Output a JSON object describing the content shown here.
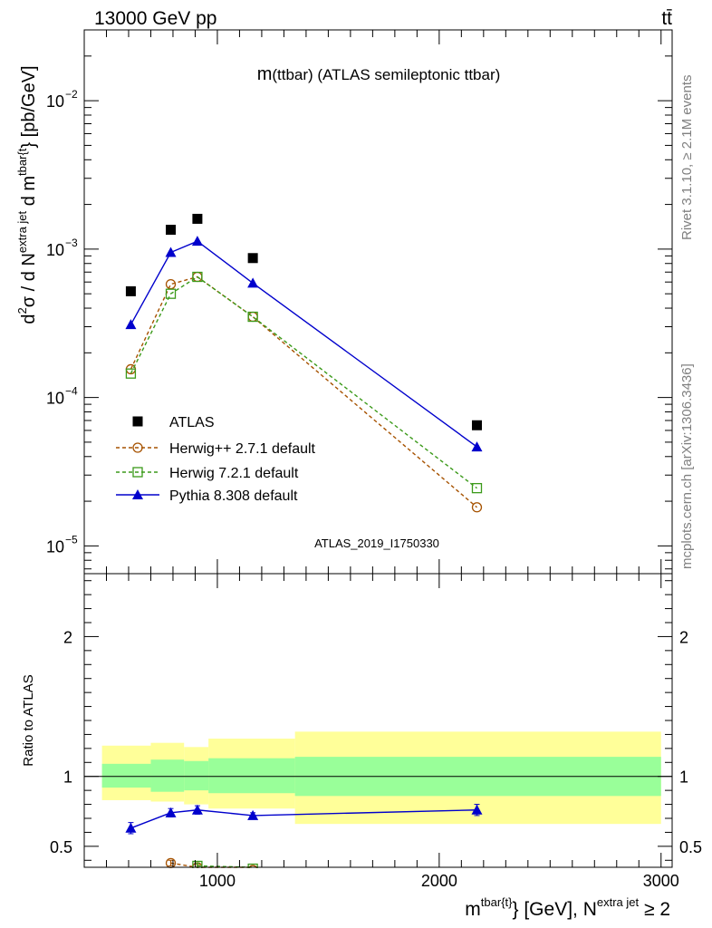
{
  "header": {
    "energy_label": "13000 GeV pp",
    "process_label": "tt̄",
    "rivet_label": "Rivet 3.1.10, ≥ 2.1M events",
    "mcplots_label": "mcplots.cern.ch [arXiv:1306.3436]"
  },
  "colors": {
    "atlas": "#000000",
    "herwigpp": "#a65200",
    "herwig7": "#3b9a1a",
    "pythia": "#0000cc",
    "band_inner": "#99ff99",
    "band_outer": "#ffff99",
    "analysis_id": "#999999"
  },
  "chart_data": [
    {
      "type": "line",
      "title": "m(ttbar) (ATLAS semileptonic ttbar)",
      "title_main": "m",
      "title_rest": "(ttbar) (ATLAS semileptonic ttbar)",
      "ylabel_parts": {
        "a": "d",
        "a_sup": "2",
        "b": "σ / d N",
        "b_sup": "extra jet",
        "c": " d m",
        "c_sup": "tbar{t",
        "d": "} [pb/GeV]"
      },
      "yscale": "log",
      "ylim": [
        6.5e-06,
        0.03
      ],
      "xlim": [
        400,
        3050
      ],
      "y_tick_labels": [
        "10",
        "10",
        "10",
        "10"
      ],
      "y_tick_exponents": [
        "−2",
        "−3",
        "−4",
        "−5"
      ],
      "y_tick_values": [
        0.01,
        0.001,
        0.0001,
        1e-05
      ],
      "analysis_id": "ATLAS_2019_I1750330",
      "legend_position": "bottom-left",
      "series": [
        {
          "name": "ATLAS",
          "marker": "square-filled",
          "x": [
            610,
            790,
            910,
            1160,
            2170
          ],
          "y": [
            0.00052,
            0.00135,
            0.0016,
            0.00087,
            6.5e-05
          ]
        },
        {
          "name": "Herwig++ 2.7.1 default",
          "marker": "circle-open",
          "linestyle": "dashed",
          "x": [
            610,
            790,
            910,
            1160,
            2170
          ],
          "y": [
            0.000155,
            0.00058,
            0.00065,
            0.00035,
            1.82e-05
          ]
        },
        {
          "name": "Herwig 7.2.1 default",
          "marker": "square-open",
          "linestyle": "dashed",
          "x": [
            610,
            790,
            910,
            1160,
            2170
          ],
          "y": [
            0.000145,
            0.0005,
            0.00065,
            0.00035,
            2.45e-05
          ]
        },
        {
          "name": "Pythia 8.308 default",
          "marker": "triangle-filled",
          "linestyle": "solid",
          "x": [
            610,
            790,
            910,
            1160,
            2170
          ],
          "y": [
            0.00031,
            0.00095,
            0.00113,
            0.00059,
            4.65e-05
          ]
        }
      ]
    },
    {
      "type": "line",
      "ylabel": "Ratio to ATLAS",
      "xlabel_parts": {
        "a": "m",
        "a_sup": "tbar{t}",
        "b": "} [GeV], N",
        "b_sup": "extra jet",
        "c": " ≥ 2"
      },
      "ylim": [
        0.35,
        2.45
      ],
      "xlim": [
        400,
        3050
      ],
      "x_ticks": [
        1000,
        2000,
        3000
      ],
      "x_tick_labels": [
        "1000",
        "2000",
        "3000"
      ],
      "y_ticks": [
        0.5,
        1,
        2
      ],
      "y_tick_labels": [
        "0.5",
        "1",
        "2"
      ],
      "reference_line": 1,
      "bands": [
        {
          "xlo": 480,
          "xhi": 700,
          "inner": [
            0.92,
            1.09
          ],
          "outer": [
            0.83,
            1.22
          ]
        },
        {
          "xlo": 700,
          "xhi": 850,
          "inner": [
            0.89,
            1.12
          ],
          "outer": [
            0.82,
            1.24
          ]
        },
        {
          "xlo": 850,
          "xhi": 960,
          "inner": [
            0.9,
            1.11
          ],
          "outer": [
            0.8,
            1.21
          ]
        },
        {
          "xlo": 960,
          "xhi": 1350,
          "inner": [
            0.88,
            1.13
          ],
          "outer": [
            0.77,
            1.27
          ]
        },
        {
          "xlo": 1350,
          "xhi": 3000,
          "inner": [
            0.86,
            1.14
          ],
          "outer": [
            0.66,
            1.32
          ]
        }
      ],
      "series": [
        {
          "name": "Herwig++ 2.7.1 default",
          "x": [
            790,
            910,
            1160
          ],
          "y": [
            0.38,
            0.35,
            0.33
          ],
          "err": [
            0.02,
            0.02,
            0
          ]
        },
        {
          "name": "Herwig 7.2.1 default",
          "x": [
            910,
            1160
          ],
          "y": [
            0.36,
            0.34
          ],
          "err": [
            0.02,
            0
          ]
        },
        {
          "name": "Pythia 8.308 default",
          "x": [
            610,
            790,
            910,
            1160,
            2170
          ],
          "y": [
            0.63,
            0.74,
            0.76,
            0.72,
            0.76
          ],
          "err": [
            0.04,
            0.03,
            0.03,
            0.02,
            0.04
          ]
        }
      ]
    }
  ]
}
